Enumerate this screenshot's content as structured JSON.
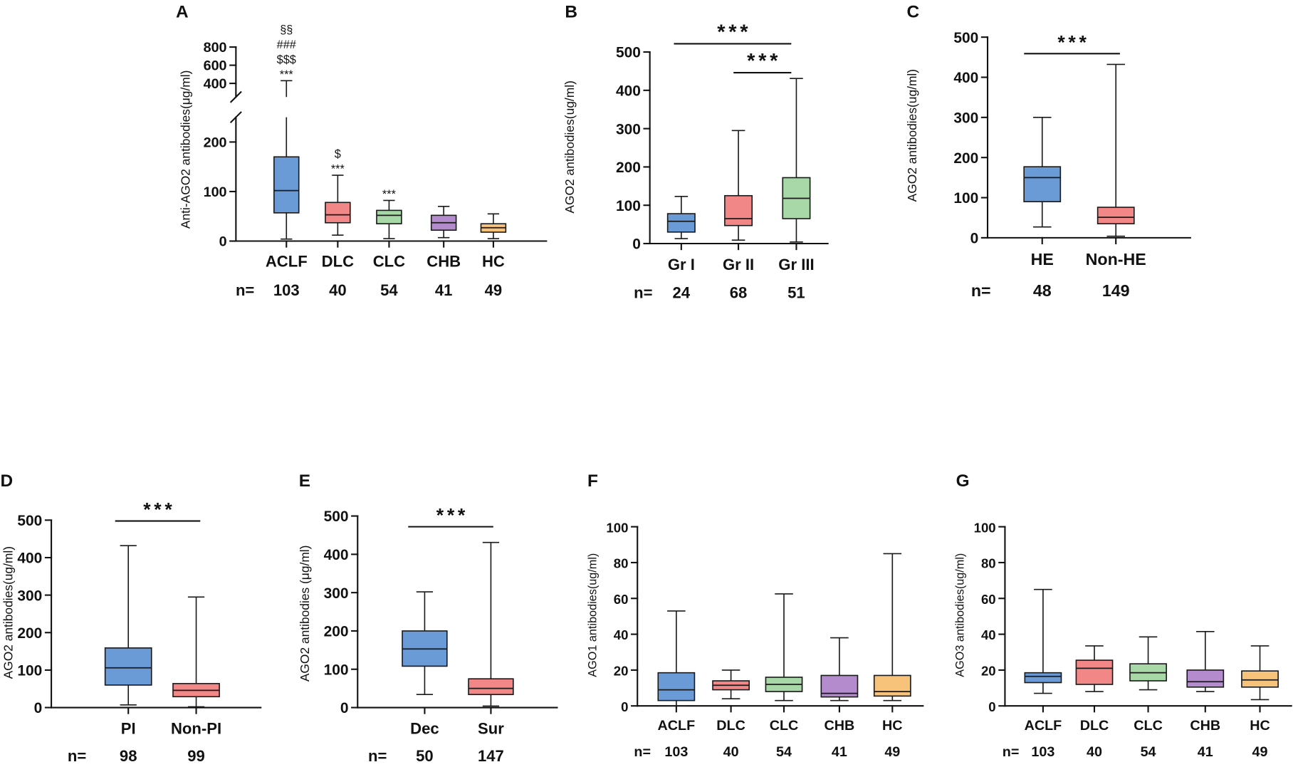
{
  "chart_data": [
    {
      "panel": "A",
      "type": "box",
      "ylabel": "Anti-AGO2 antibodies(μg/ml)",
      "yticks": [
        0,
        100,
        200,
        400,
        600,
        800
      ],
      "axis_break": {
        "lower": [
          0,
          250
        ],
        "upper": [
          250,
          800
        ]
      },
      "n_label": "n=",
      "boxes": [
        {
          "category": "ACLF",
          "n": "103",
          "min": 4,
          "q1": 57,
          "median": 102,
          "q3": 170,
          "max": 430,
          "color": "#6b9bd7",
          "annotations": [
            "§§",
            "###",
            "$$$",
            "***"
          ]
        },
        {
          "category": "DLC",
          "n": "40",
          "min": 12,
          "q1": 37,
          "median": 53,
          "q3": 78,
          "max": 133,
          "color": "#f28787",
          "annotations": [
            "$",
            "***"
          ]
        },
        {
          "category": "CLC",
          "n": "54",
          "min": 5,
          "q1": 35,
          "median": 52,
          "q3": 62,
          "max": 82,
          "color": "#a8d8a8",
          "annotations": [
            "***"
          ]
        },
        {
          "category": "CHB",
          "n": "41",
          "min": 7,
          "q1": 22,
          "median": 37,
          "q3": 52,
          "max": 70,
          "color": "#b48ccd",
          "annotations": []
        },
        {
          "category": "HC",
          "n": "49",
          "min": 5,
          "q1": 18,
          "median": 27,
          "q3": 35,
          "max": 55,
          "color": "#f7c37a",
          "annotations": []
        }
      ],
      "significance": []
    },
    {
      "panel": "B",
      "type": "box",
      "ylabel": "AGO2 antibodies(ug/ml)",
      "yticks": [
        0,
        100,
        200,
        300,
        400,
        500
      ],
      "n_label": "n=",
      "boxes": [
        {
          "category": "Gr I",
          "n": "24",
          "min": 13,
          "q1": 30,
          "median": 58,
          "q3": 78,
          "max": 123,
          "color": "#6b9bd7"
        },
        {
          "category": "Gr II",
          "n": "68",
          "min": 9,
          "q1": 47,
          "median": 65,
          "q3": 125,
          "max": 295,
          "color": "#f28787"
        },
        {
          "category": "Gr III",
          "n": "51",
          "min": 4,
          "q1": 65,
          "median": 118,
          "q3": 172,
          "max": 431,
          "color": "#a8d8a8"
        }
      ],
      "significance": [
        {
          "from": "Gr I",
          "to": "Gr III",
          "label": "***"
        },
        {
          "from": "Gr II",
          "to": "Gr III",
          "label": "***"
        }
      ]
    },
    {
      "panel": "C",
      "type": "box",
      "ylabel": "AGO2 antibodies(ug/ml)",
      "yticks": [
        0,
        100,
        200,
        300,
        400,
        500
      ],
      "n_label": "n=",
      "boxes": [
        {
          "category": "HE",
          "n": "48",
          "min": 27,
          "q1": 90,
          "median": 150,
          "q3": 177,
          "max": 300,
          "color": "#6b9bd7"
        },
        {
          "category": "Non-HE",
          "n": "149",
          "min": 4,
          "q1": 35,
          "median": 51,
          "q3": 76,
          "max": 432,
          "color": "#f28787"
        }
      ],
      "significance": [
        {
          "from": "HE",
          "to": "Non-HE",
          "label": "***"
        }
      ]
    },
    {
      "panel": "D",
      "type": "box",
      "ylabel": "AGO2 antibodies(ug/ml)",
      "yticks": [
        0,
        100,
        200,
        300,
        400,
        500
      ],
      "n_label": "n=",
      "boxes": [
        {
          "category": "PI",
          "n": "98",
          "min": 7,
          "q1": 60,
          "median": 106,
          "q3": 159,
          "max": 432,
          "color": "#6b9bd7"
        },
        {
          "category": "Non-PI",
          "n": "99",
          "min": 2,
          "q1": 29,
          "median": 46,
          "q3": 64,
          "max": 295,
          "color": "#f28787"
        }
      ],
      "significance": [
        {
          "from": "PI",
          "to": "Non-PI",
          "label": "***"
        }
      ]
    },
    {
      "panel": "E",
      "type": "box",
      "ylabel": "AGO2 antibodies (μg/ml)",
      "yticks": [
        0,
        100,
        200,
        300,
        400,
        500
      ],
      "n_label": "n=",
      "boxes": [
        {
          "category": "Dec",
          "n": "50",
          "min": 34,
          "q1": 108,
          "median": 153,
          "q3": 200,
          "max": 302,
          "color": "#6b9bd7"
        },
        {
          "category": "Sur",
          "n": "147",
          "min": 4,
          "q1": 34,
          "median": 50,
          "q3": 75,
          "max": 431,
          "color": "#f28787"
        }
      ],
      "significance": [
        {
          "from": "Dec",
          "to": "Sur",
          "label": "***"
        }
      ]
    },
    {
      "panel": "F",
      "type": "box",
      "ylabel": "AGO1 antibodies(ug/ml)",
      "yticks": [
        0,
        20,
        40,
        60,
        80,
        100
      ],
      "n_label": "n=",
      "boxes": [
        {
          "category": "ACLF",
          "n": "103",
          "min": 0,
          "q1": 3,
          "median": 9,
          "q3": 18.5,
          "max": 53,
          "color": "#6b9bd7"
        },
        {
          "category": "DLC",
          "n": "40",
          "min": 4,
          "q1": 9,
          "median": 11.5,
          "q3": 14,
          "max": 20,
          "color": "#f28787"
        },
        {
          "category": "CLC",
          "n": "54",
          "min": 3,
          "q1": 8,
          "median": 12,
          "q3": 16,
          "max": 62.5,
          "color": "#a8d8a8"
        },
        {
          "category": "CHB",
          "n": "41",
          "min": 3,
          "q1": 5,
          "median": 7,
          "q3": 17,
          "max": 38,
          "color": "#b48ccd"
        },
        {
          "category": "HC",
          "n": "49",
          "min": 3,
          "q1": 5.5,
          "median": 8,
          "q3": 17,
          "max": 85,
          "color": "#f7c37a"
        }
      ],
      "significance": []
    },
    {
      "panel": "G",
      "type": "box",
      "ylabel": "AGO3 antibodies(ug/ml)",
      "yticks": [
        0,
        20,
        40,
        60,
        80,
        100
      ],
      "n_label": "n=",
      "boxes": [
        {
          "category": "ACLF",
          "n": "103",
          "min": 7,
          "q1": 13,
          "median": 16.5,
          "q3": 18.5,
          "max": 65,
          "color": "#6b9bd7"
        },
        {
          "category": "DLC",
          "n": "40",
          "min": 8,
          "q1": 12,
          "median": 21,
          "q3": 25.5,
          "max": 33.5,
          "color": "#f28787"
        },
        {
          "category": "CLC",
          "n": "54",
          "min": 9,
          "q1": 14,
          "median": 18.5,
          "q3": 23.5,
          "max": 38.5,
          "color": "#a8d8a8"
        },
        {
          "category": "CHB",
          "n": "41",
          "min": 8,
          "q1": 10.5,
          "median": 13.5,
          "q3": 20,
          "max": 41.5,
          "color": "#b48ccd"
        },
        {
          "category": "HC",
          "n": "49",
          "min": 3.5,
          "q1": 10.5,
          "median": 14.5,
          "q3": 19.5,
          "max": 33.5,
          "color": "#f7c37a"
        }
      ],
      "significance": []
    }
  ]
}
